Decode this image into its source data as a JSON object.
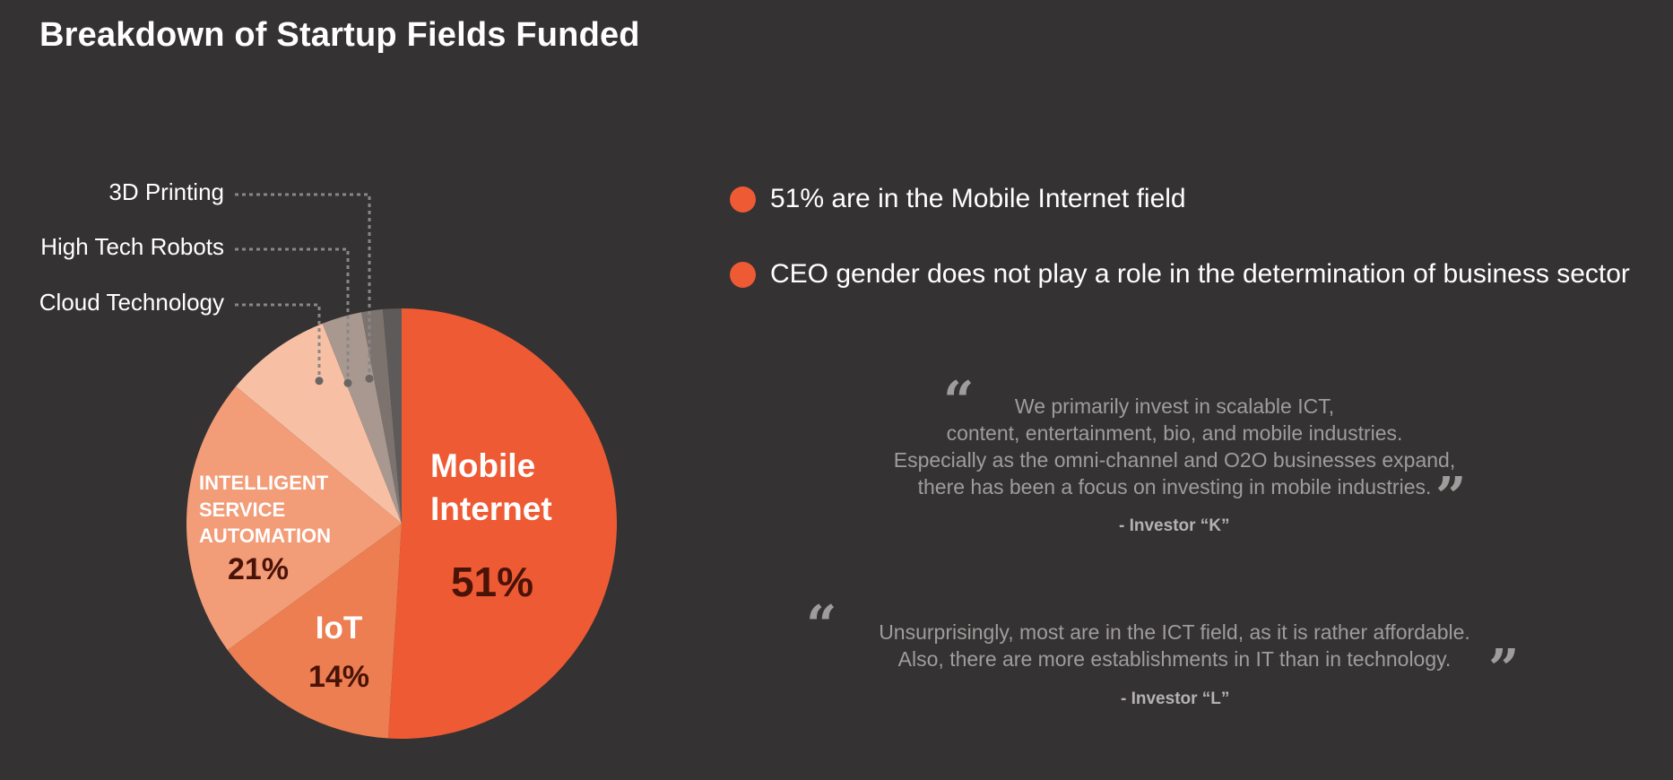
{
  "page": {
    "title": "Breakdown of Startup Fields Funded"
  },
  "chart_data": {
    "type": "pie",
    "title": "Breakdown of Startup Fields Funded",
    "slices": [
      {
        "name": "Mobile Internet",
        "value": 51,
        "value_label": "51%",
        "color": "#ee5a33"
      },
      {
        "name": "IoT",
        "value": 14,
        "value_label": "14%",
        "color": "#ec7e51"
      },
      {
        "name": "INTELLIGENT SERVICE AUTOMATION",
        "value": 21,
        "value_label": "21%",
        "color": "#f29c78"
      },
      {
        "name": "Cloud Technology",
        "value": 8,
        "value_label": "",
        "color": "#f7c0a5"
      },
      {
        "name": "High Tech Robots",
        "value": 3,
        "value_label": "",
        "color": "#a99890"
      },
      {
        "name": "3D Printing",
        "value": 1.6,
        "value_label": "",
        "color": "#7c736f"
      },
      {
        "name": "",
        "value": 1.4,
        "value_label": "",
        "color": "#5e5a59"
      }
    ],
    "inline_labels": {
      "mobile": [
        "Mobile",
        "Internet"
      ],
      "iot": [
        "IoT"
      ],
      "isa": [
        "INTELLIGENT",
        "SERVICE",
        "AUTOMATION"
      ]
    },
    "callouts": [
      "3D Printing",
      "High Tech Robots",
      "Cloud Technology"
    ],
    "label_color": "#4a1308"
  },
  "bullets": [
    {
      "text": "51%  are in the Mobile Internet field"
    },
    {
      "text": "CEO gender does not play a role in the determination of business sector"
    }
  ],
  "quotes": [
    {
      "lines": [
        "We primarily invest in scalable ICT,",
        "content, entertainment, bio, and mobile industries.",
        "Especially as the omni-channel and O2O businesses expand,",
        "there has been a focus on investing in mobile industries."
      ],
      "attribution": "- Investor “K”",
      "open_mark": "“",
      "close_mark": "”"
    },
    {
      "lines": [
        "Unsurprisingly, most are in the ICT field, as it is rather affordable.",
        "Also, there are more establishments in IT than in technology."
      ],
      "attribution": "- Investor “L”",
      "open_mark": "“",
      "close_mark": "”"
    }
  ],
  "colors": {
    "background": "#353233",
    "accent": "#ee5a33",
    "quote_text": "#9f9c9c",
    "leader_line": "#8a8787"
  }
}
